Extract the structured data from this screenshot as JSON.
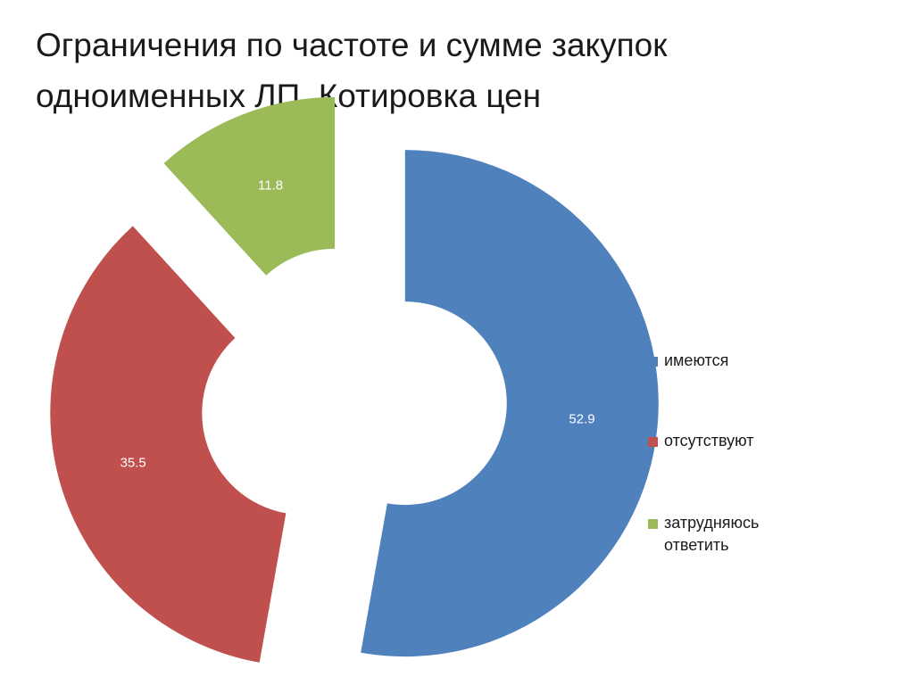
{
  "slide": {
    "title": "Ограничения по частоте и сумме закупок\nодноименных ЛП.    Котировка цен"
  },
  "chart_data": {
    "type": "pie",
    "variant": "exploded-donut",
    "title": "",
    "legend_position": "right",
    "categories": [
      "имеются",
      "отсутствуют",
      "затрудняюсь ответить"
    ],
    "values": [
      52.9,
      35.5,
      11.8
    ],
    "data_labels": [
      "52.9",
      "35.5",
      "11.8"
    ],
    "colors": [
      "#4F81BD",
      "#C0504D",
      "#9BBB59"
    ],
    "label_color": "#ffffff"
  }
}
